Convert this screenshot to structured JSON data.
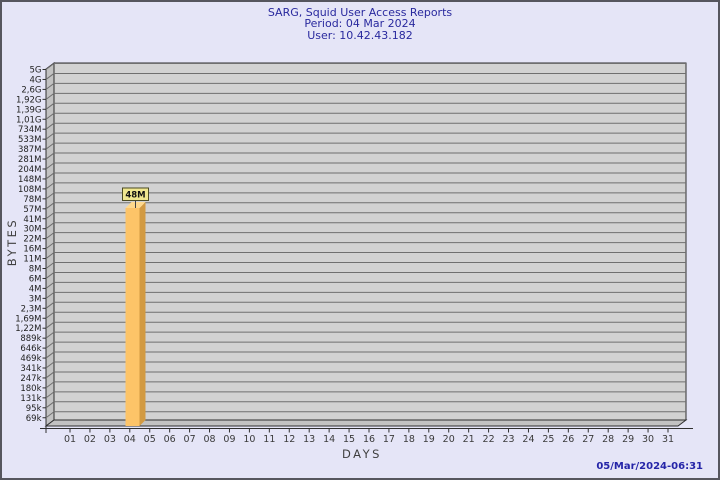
{
  "header": {
    "title": "SARG, Squid User Access Reports",
    "period": "Period: 04 Mar 2024",
    "user": "User: 10.42.43.182"
  },
  "footer": {
    "generated": "05/Mar/2024-06:31"
  },
  "colors": {
    "background": "#e5e5f7",
    "frame_border": "#56565e",
    "title_text": "#29299e",
    "timestamp_text": "#2525a8",
    "plot_fill": "#d2d2d2",
    "wall_fill": "#c2c2c2",
    "plot_border": "#2f2f2f",
    "gridline": "#6f6f6f",
    "tick_text": "#222222",
    "axis_title_text": "#3f3f3f",
    "day_text": "#3b3b3b",
    "bar_face": "#fdc468",
    "bar_side": "#d29a42",
    "bar_top": "#ffd98c",
    "value_box_fill": "#f0e78f",
    "value_box_border": "#4b4b23",
    "value_box_text": "#111111"
  },
  "chart_data": {
    "type": "bar",
    "title": "SARG, Squid User Access Reports",
    "subtitle": "Period: 04 Mar 2024",
    "user_line": "User: 10.42.43.182",
    "xlabel": "DAYS",
    "ylabel": "BYTES",
    "y_scale": "log",
    "grid": "horizontal",
    "x_categories": [
      "01",
      "02",
      "03",
      "04",
      "05",
      "06",
      "07",
      "08",
      "09",
      "10",
      "11",
      "12",
      "13",
      "14",
      "15",
      "16",
      "17",
      "18",
      "19",
      "20",
      "21",
      "22",
      "23",
      "24",
      "25",
      "26",
      "27",
      "28",
      "29",
      "30",
      "31"
    ],
    "y_ticks": [
      {
        "label": "5G",
        "value": 5000000000
      },
      {
        "label": "4G",
        "value": 4000000000
      },
      {
        "label": "2,6G",
        "value": 2600000000
      },
      {
        "label": "1,92G",
        "value": 1920000000
      },
      {
        "label": "1,39G",
        "value": 1390000000
      },
      {
        "label": "1,01G",
        "value": 1010000000
      },
      {
        "label": "734M",
        "value": 734000000
      },
      {
        "label": "533M",
        "value": 533000000
      },
      {
        "label": "387M",
        "value": 387000000
      },
      {
        "label": "281M",
        "value": 281000000
      },
      {
        "label": "204M",
        "value": 204000000
      },
      {
        "label": "148M",
        "value": 148000000
      },
      {
        "label": "108M",
        "value": 108000000
      },
      {
        "label": "78M",
        "value": 78000000
      },
      {
        "label": "57M",
        "value": 57000000
      },
      {
        "label": "41M",
        "value": 41000000
      },
      {
        "label": "30M",
        "value": 30000000
      },
      {
        "label": "22M",
        "value": 22000000
      },
      {
        "label": "16M",
        "value": 16000000
      },
      {
        "label": "11M",
        "value": 11000000
      },
      {
        "label": "8M",
        "value": 8000000
      },
      {
        "label": "6M",
        "value": 6000000
      },
      {
        "label": "4M",
        "value": 4000000
      },
      {
        "label": "3M",
        "value": 3000000
      },
      {
        "label": "2,3M",
        "value": 2300000
      },
      {
        "label": "1,69M",
        "value": 1690000
      },
      {
        "label": "1,22M",
        "value": 1220000
      },
      {
        "label": "889k",
        "value": 889000
      },
      {
        "label": "646k",
        "value": 646000
      },
      {
        "label": "469k",
        "value": 469000
      },
      {
        "label": "341k",
        "value": 341000
      },
      {
        "label": "247k",
        "value": 247000
      },
      {
        "label": "180k",
        "value": 180000
      },
      {
        "label": "131k",
        "value": 131000
      },
      {
        "label": "95k",
        "value": 95000
      },
      {
        "label": "69k",
        "value": 69000
      }
    ],
    "bars": [
      {
        "day": "04",
        "value": 48000000,
        "label": "48M"
      }
    ]
  }
}
